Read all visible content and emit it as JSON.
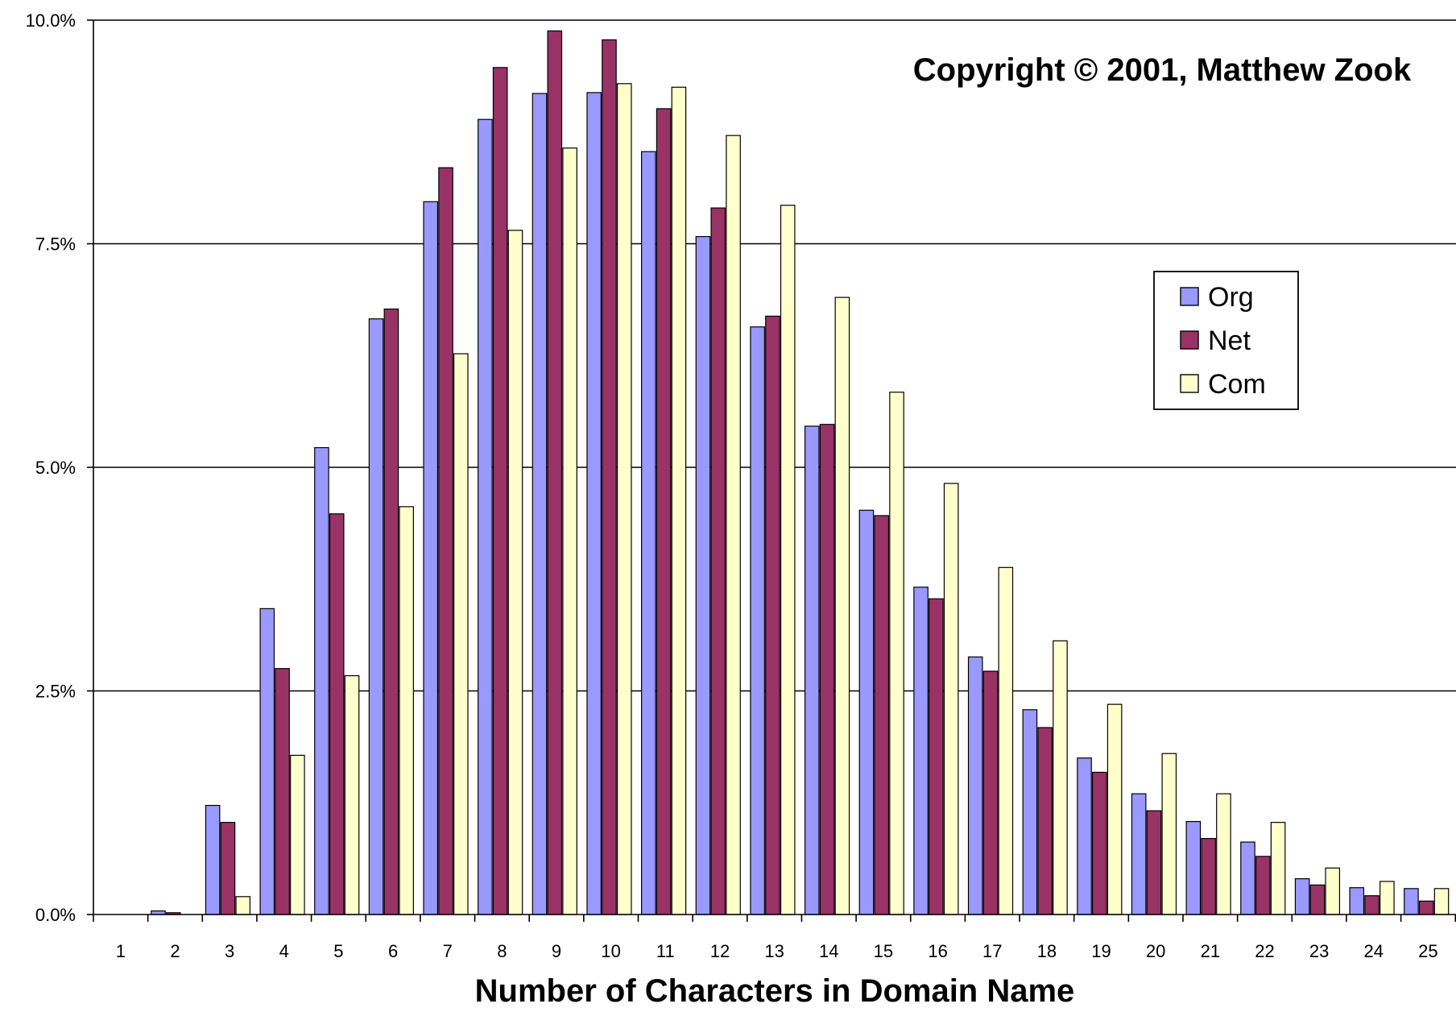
{
  "chart_data": {
    "type": "bar",
    "title": "",
    "annotation": "Copyright © 2001, Matthew Zook",
    "xlabel": "Number of Characters in Domain Name",
    "ylabel": "",
    "categories": [
      "1",
      "2",
      "3",
      "4",
      "5",
      "6",
      "7",
      "8",
      "9",
      "10",
      "11",
      "12",
      "13",
      "14",
      "15",
      "16",
      "17",
      "18",
      "19",
      "20",
      "21",
      "22",
      "23",
      "24",
      "25"
    ],
    "y_ticks": [
      "0.0%",
      "2.5%",
      "5.0%",
      "7.5%",
      "10.0%"
    ],
    "ylim": [
      0,
      10
    ],
    "grid": true,
    "legend_position": "right",
    "series": [
      {
        "name": "Org",
        "color": "#9999ff",
        "values": [
          0.0,
          0.04,
          1.22,
          3.42,
          5.22,
          6.66,
          7.97,
          8.89,
          9.18,
          9.19,
          8.53,
          7.58,
          6.57,
          5.46,
          4.52,
          3.66,
          2.88,
          2.29,
          1.75,
          1.35,
          1.04,
          0.81,
          0.4,
          0.3,
          0.29
        ]
      },
      {
        "name": "Net",
        "color": "#993366",
        "values": [
          0.0,
          0.02,
          1.03,
          2.75,
          4.48,
          6.77,
          8.35,
          9.47,
          9.88,
          9.78,
          9.01,
          7.9,
          6.69,
          5.48,
          4.46,
          3.53,
          2.72,
          2.09,
          1.59,
          1.16,
          0.85,
          0.65,
          0.33,
          0.21,
          0.15
        ]
      },
      {
        "name": "Com",
        "color": "#ffffcc",
        "values": [
          0.0,
          0.0,
          0.2,
          1.78,
          2.67,
          4.56,
          6.27,
          7.65,
          8.57,
          9.29,
          9.25,
          8.71,
          7.93,
          6.9,
          5.84,
          4.82,
          3.88,
          3.06,
          2.35,
          1.8,
          1.35,
          1.03,
          0.52,
          0.37,
          0.29
        ]
      }
    ]
  }
}
